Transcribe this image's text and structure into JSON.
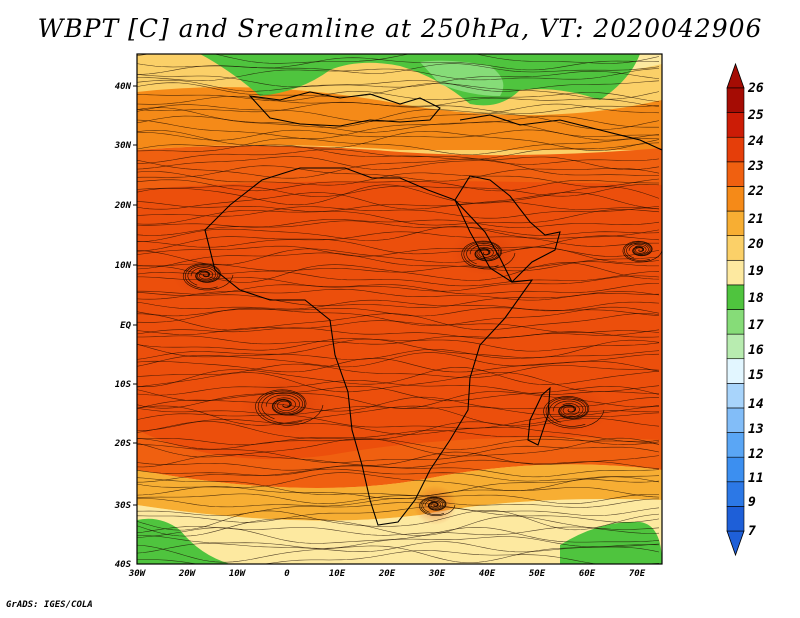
{
  "title": "WBPT [C] and Sreamline at 250hPa, VT: 2020042906",
  "footer": "GrADS: IGES/COLA",
  "map": {
    "lat_labels": [
      "40N",
      "30N",
      "20N",
      "10N",
      "EQ",
      "10S",
      "20S",
      "30S",
      "40S"
    ],
    "lon_labels": [
      "30W",
      "20W",
      "10W",
      "0",
      "10E",
      "20E",
      "30E",
      "40E",
      "50E",
      "60E",
      "70E"
    ],
    "lon_range": [
      -30,
      75
    ],
    "lat_range": [
      -40,
      45
    ]
  },
  "colorbar": {
    "labels": [
      "7",
      "9",
      "11",
      "12",
      "13",
      "14",
      "15",
      "16",
      "17",
      "18",
      "19",
      "20",
      "21",
      "22",
      "23",
      "24",
      "25",
      "26"
    ],
    "colors": [
      "#1e5fd8",
      "#2c78e6",
      "#3c8ff0",
      "#5aa6f5",
      "#82bdf8",
      "#a8d4fb",
      "#e2f6ff",
      "#b8ecb0",
      "#86dc78",
      "#4fc43e",
      "#fde9a0",
      "#fbd068",
      "#f7ae33",
      "#f58a18",
      "#f06010",
      "#e53e0a",
      "#cc1c06",
      "#a50c04"
    ]
  }
}
